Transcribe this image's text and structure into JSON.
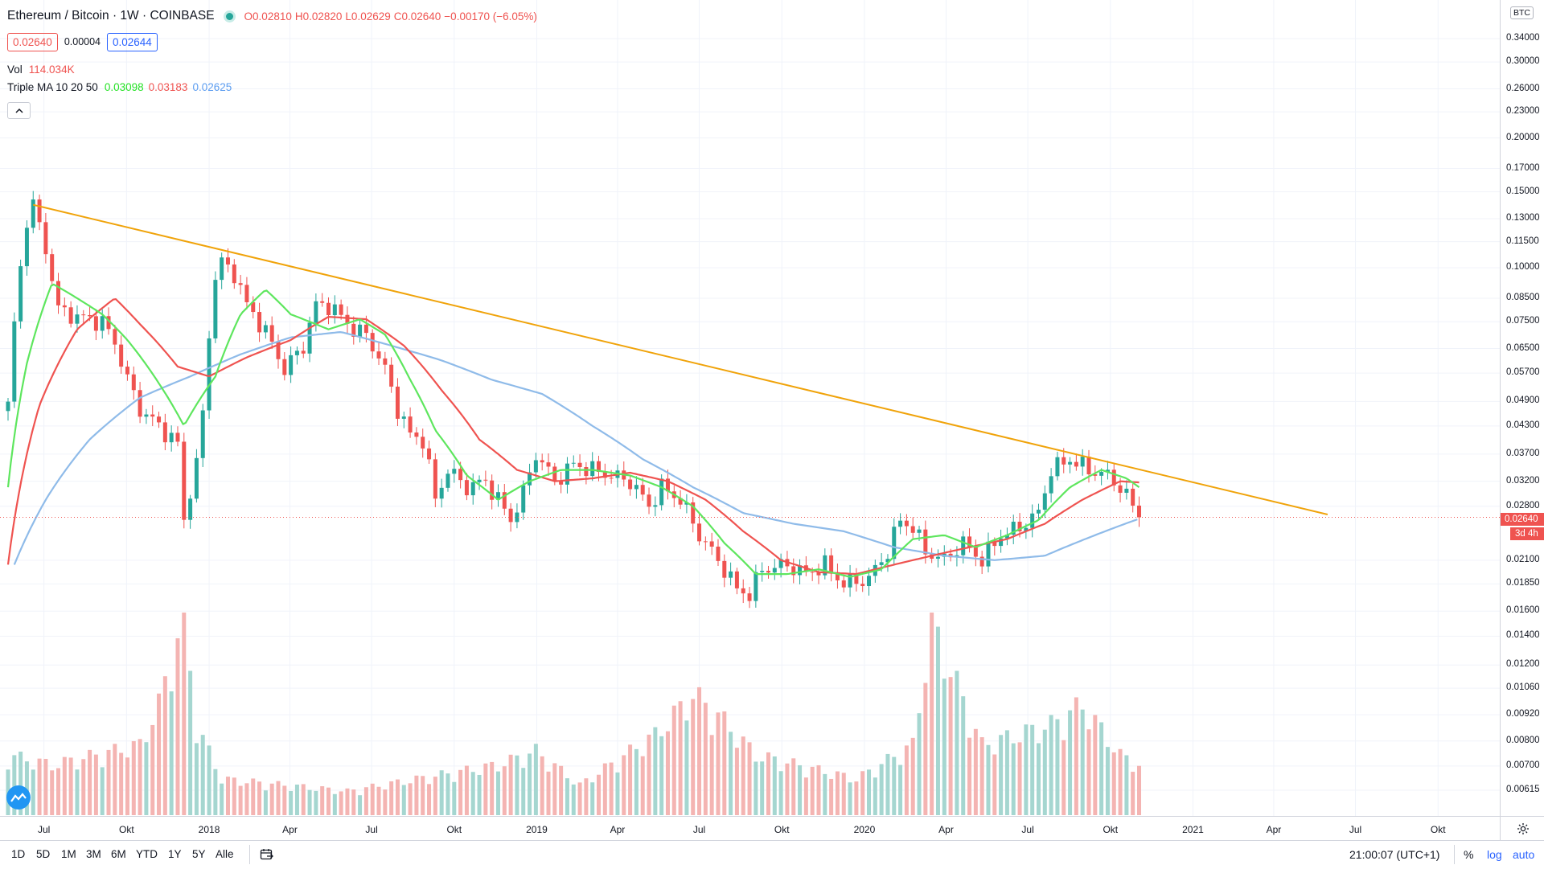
{
  "symbol": {
    "title": "Ethereum / Bitcoin · 1W · COINBASE",
    "ohlc": {
      "open": "O0.02810",
      "high": "H0.02820",
      "low": "L0.02629",
      "close": "C0.02640",
      "change": "−0.00170 (−6.05%)"
    },
    "bid": "0.02640",
    "spread": "0.00004",
    "ask": "0.02644"
  },
  "indicators": {
    "volume": {
      "label": "Vol",
      "value": "114.034K"
    },
    "triple_ma": {
      "label": "Triple MA 10 20 50",
      "ma10": "0.03098",
      "ma20": "0.03183",
      "ma50": "0.02625",
      "colors": {
        "ma10": "#5ee65e",
        "ma20": "#ef5350",
        "ma50": "#8fbbe9"
      }
    }
  },
  "price_scale": {
    "unit": "BTC",
    "labels": [
      "0.34000",
      "0.30000",
      "0.26000",
      "0.23000",
      "0.20000",
      "0.17000",
      "0.15000",
      "0.13000",
      "0.11500",
      "0.10000",
      "0.08500",
      "0.07500",
      "0.06500",
      "0.05700",
      "0.04900",
      "0.04300",
      "0.03700",
      "0.03200",
      "0.02800",
      "0.02100",
      "0.01850",
      "0.01600",
      "0.01400",
      "0.01200",
      "0.01060",
      "0.00920",
      "0.00800",
      "0.00700",
      "0.00615"
    ],
    "current_price": "0.02640",
    "countdown": "3d 4h"
  },
  "time_axis": [
    "Jul",
    "Okt",
    "2018",
    "Apr",
    "Jul",
    "Okt",
    "2019",
    "Apr",
    "Jul",
    "Okt",
    "2020",
    "Apr",
    "Jul",
    "Okt",
    "2021",
    "Apr",
    "Jul",
    "Okt"
  ],
  "bottom_bar": {
    "ranges": [
      "1D",
      "5D",
      "1M",
      "3M",
      "6M",
      "YTD",
      "1Y",
      "5Y",
      "Alle"
    ],
    "clock": "21:00:07 (UTC+1)",
    "percent": "%",
    "log": "log",
    "auto": "auto"
  },
  "chart_data": {
    "type": "candlestick",
    "interval": "1W",
    "scale": "log",
    "x_range": [
      "2017-05",
      "2021-11"
    ],
    "y_range": [
      0.0058,
      0.38
    ],
    "colors": {
      "up": "#26a69a",
      "down": "#ef5350",
      "trendline": "#f0a30a"
    },
    "price_anchors": [
      {
        "t": "2017-05-22",
        "p": 0.048
      },
      {
        "t": "2017-06-05",
        "p": 0.1
      },
      {
        "t": "2017-06-12",
        "p": 0.13
      },
      {
        "t": "2017-06-19",
        "p": 0.14
      },
      {
        "t": "2017-07-03",
        "p": 0.11
      },
      {
        "t": "2017-07-17",
        "p": 0.08
      },
      {
        "t": "2017-08-07",
        "p": 0.077
      },
      {
        "t": "2017-09-04",
        "p": 0.075
      },
      {
        "t": "2017-09-18",
        "p": 0.067
      },
      {
        "t": "2017-10-02",
        "p": 0.055
      },
      {
        "t": "2017-10-16",
        "p": 0.047
      },
      {
        "t": "2017-11-06",
        "p": 0.043
      },
      {
        "t": "2017-11-27",
        "p": 0.039
      },
      {
        "t": "2017-12-04",
        "p": 0.026
      },
      {
        "t": "2017-12-18",
        "p": 0.035
      },
      {
        "t": "2017-12-25",
        "p": 0.046
      },
      {
        "t": "2018-01-08",
        "p": 0.095
      },
      {
        "t": "2018-01-15",
        "p": 0.103
      },
      {
        "t": "2018-01-29",
        "p": 0.097
      },
      {
        "t": "2018-02-12",
        "p": 0.082
      },
      {
        "t": "2018-03-05",
        "p": 0.071
      },
      {
        "t": "2018-03-26",
        "p": 0.058
      },
      {
        "t": "2018-04-16",
        "p": 0.066
      },
      {
        "t": "2018-04-30",
        "p": 0.082
      },
      {
        "t": "2018-05-14",
        "p": 0.082
      },
      {
        "t": "2018-06-11",
        "p": 0.072
      },
      {
        "t": "2018-06-25",
        "p": 0.07
      },
      {
        "t": "2018-07-16",
        "p": 0.058
      },
      {
        "t": "2018-07-30",
        "p": 0.047
      },
      {
        "t": "2018-08-13",
        "p": 0.041
      },
      {
        "t": "2018-08-27",
        "p": 0.04
      },
      {
        "t": "2018-09-10",
        "p": 0.029
      },
      {
        "t": "2018-09-24",
        "p": 0.034
      },
      {
        "t": "2018-10-15",
        "p": 0.031
      },
      {
        "t": "2018-11-05",
        "p": 0.032
      },
      {
        "t": "2018-11-19",
        "p": 0.029
      },
      {
        "t": "2018-12-03",
        "p": 0.026
      },
      {
        "t": "2018-12-17",
        "p": 0.03
      },
      {
        "t": "2018-12-31",
        "p": 0.037
      },
      {
        "t": "2019-01-21",
        "p": 0.032
      },
      {
        "t": "2019-02-11",
        "p": 0.035
      },
      {
        "t": "2019-03-04",
        "p": 0.034
      },
      {
        "t": "2019-03-25",
        "p": 0.033
      },
      {
        "t": "2019-04-15",
        "p": 0.032
      },
      {
        "t": "2019-05-06",
        "p": 0.028
      },
      {
        "t": "2019-05-20",
        "p": 0.031
      },
      {
        "t": "2019-06-10",
        "p": 0.029
      },
      {
        "t": "2019-07-01",
        "p": 0.024
      },
      {
        "t": "2019-07-22",
        "p": 0.021
      },
      {
        "t": "2019-08-12",
        "p": 0.018
      },
      {
        "t": "2019-08-26",
        "p": 0.0175
      },
      {
        "t": "2019-09-09",
        "p": 0.02
      },
      {
        "t": "2019-10-07",
        "p": 0.0205
      },
      {
        "t": "2019-10-28",
        "p": 0.0195
      },
      {
        "t": "2019-11-18",
        "p": 0.0205
      },
      {
        "t": "2019-12-09",
        "p": 0.0185
      },
      {
        "t": "2020-01-06",
        "p": 0.019
      },
      {
        "t": "2020-01-27",
        "p": 0.022
      },
      {
        "t": "2020-02-10",
        "p": 0.026
      },
      {
        "t": "2020-02-24",
        "p": 0.025
      },
      {
        "t": "2020-03-09",
        "p": 0.022
      },
      {
        "t": "2020-03-30",
        "p": 0.021
      },
      {
        "t": "2020-04-20",
        "p": 0.023
      },
      {
        "t": "2020-05-11",
        "p": 0.021
      },
      {
        "t": "2020-06-01",
        "p": 0.024
      },
      {
        "t": "2020-06-22",
        "p": 0.025
      },
      {
        "t": "2020-07-13",
        "p": 0.027
      },
      {
        "t": "2020-07-27",
        "p": 0.034
      },
      {
        "t": "2020-08-17",
        "p": 0.036
      },
      {
        "t": "2020-09-07",
        "p": 0.034
      },
      {
        "t": "2020-09-28",
        "p": 0.033
      },
      {
        "t": "2020-10-12",
        "p": 0.031
      },
      {
        "t": "2020-10-26",
        "p": 0.0281
      },
      {
        "t": "2020-11-02",
        "p": 0.0264
      }
    ],
    "ma10_anchors": [
      {
        "t": "2017-05-22",
        "p": 0.031
      },
      {
        "t": "2017-06-12",
        "p": 0.06
      },
      {
        "t": "2017-07-10",
        "p": 0.092
      },
      {
        "t": "2017-08-07",
        "p": 0.085
      },
      {
        "t": "2017-09-04",
        "p": 0.078
      },
      {
        "t": "2017-10-02",
        "p": 0.068
      },
      {
        "t": "2017-11-06",
        "p": 0.054
      },
      {
        "t": "2017-12-04",
        "p": 0.043
      },
      {
        "t": "2018-01-08",
        "p": 0.056
      },
      {
        "t": "2018-02-05",
        "p": 0.078
      },
      {
        "t": "2018-03-05",
        "p": 0.089
      },
      {
        "t": "2018-04-02",
        "p": 0.078
      },
      {
        "t": "2018-05-14",
        "p": 0.072
      },
      {
        "t": "2018-06-18",
        "p": 0.076
      },
      {
        "t": "2018-07-16",
        "p": 0.07
      },
      {
        "t": "2018-08-13",
        "p": 0.055
      },
      {
        "t": "2018-09-10",
        "p": 0.042
      },
      {
        "t": "2018-10-15",
        "p": 0.033
      },
      {
        "t": "2018-11-19",
        "p": 0.029
      },
      {
        "t": "2018-12-24",
        "p": 0.032
      },
      {
        "t": "2019-01-28",
        "p": 0.034
      },
      {
        "t": "2019-03-04",
        "p": 0.034
      },
      {
        "t": "2019-04-15",
        "p": 0.033
      },
      {
        "t": "2019-05-20",
        "p": 0.031
      },
      {
        "t": "2019-06-24",
        "p": 0.028
      },
      {
        "t": "2019-07-29",
        "p": 0.023
      },
      {
        "t": "2019-09-02",
        "p": 0.0195
      },
      {
        "t": "2019-10-07",
        "p": 0.0195
      },
      {
        "t": "2019-11-11",
        "p": 0.02
      },
      {
        "t": "2019-12-16",
        "p": 0.0192
      },
      {
        "t": "2020-01-20",
        "p": 0.02
      },
      {
        "t": "2020-02-24",
        "p": 0.0235
      },
      {
        "t": "2020-03-30",
        "p": 0.024
      },
      {
        "t": "2020-05-04",
        "p": 0.0225
      },
      {
        "t": "2020-06-08",
        "p": 0.024
      },
      {
        "t": "2020-07-13",
        "p": 0.026
      },
      {
        "t": "2020-08-17",
        "p": 0.031
      },
      {
        "t": "2020-09-21",
        "p": 0.034
      },
      {
        "t": "2020-10-19",
        "p": 0.0325
      },
      {
        "t": "2020-11-02",
        "p": 0.031
      }
    ],
    "ma20_anchors": [
      {
        "t": "2017-05-22",
        "p": 0.0205
      },
      {
        "t": "2017-06-26",
        "p": 0.048
      },
      {
        "t": "2017-08-07",
        "p": 0.072
      },
      {
        "t": "2017-09-18",
        "p": 0.085
      },
      {
        "t": "2017-10-16",
        "p": 0.074
      },
      {
        "t": "2017-11-27",
        "p": 0.059
      },
      {
        "t": "2018-01-01",
        "p": 0.056
      },
      {
        "t": "2018-02-12",
        "p": 0.062
      },
      {
        "t": "2018-04-02",
        "p": 0.068
      },
      {
        "t": "2018-05-14",
        "p": 0.077
      },
      {
        "t": "2018-06-25",
        "p": 0.076
      },
      {
        "t": "2018-08-06",
        "p": 0.066
      },
      {
        "t": "2018-09-17",
        "p": 0.052
      },
      {
        "t": "2018-10-29",
        "p": 0.04
      },
      {
        "t": "2018-12-10",
        "p": 0.034
      },
      {
        "t": "2019-01-21",
        "p": 0.032
      },
      {
        "t": "2019-03-04",
        "p": 0.0325
      },
      {
        "t": "2019-04-15",
        "p": 0.0335
      },
      {
        "t": "2019-05-27",
        "p": 0.032
      },
      {
        "t": "2019-07-08",
        "p": 0.029
      },
      {
        "t": "2019-08-19",
        "p": 0.0245
      },
      {
        "t": "2019-09-30",
        "p": 0.021
      },
      {
        "t": "2019-11-11",
        "p": 0.0197
      },
      {
        "t": "2019-12-23",
        "p": 0.0195
      },
      {
        "t": "2020-02-03",
        "p": 0.0205
      },
      {
        "t": "2020-03-16",
        "p": 0.0215
      },
      {
        "t": "2020-04-27",
        "p": 0.0225
      },
      {
        "t": "2020-06-08",
        "p": 0.0235
      },
      {
        "t": "2020-07-20",
        "p": 0.0255
      },
      {
        "t": "2020-08-31",
        "p": 0.029
      },
      {
        "t": "2020-10-12",
        "p": 0.032
      },
      {
        "t": "2020-11-02",
        "p": 0.0318
      }
    ],
    "ma50_anchors": [
      {
        "t": "2017-05-29",
        "p": 0.0205
      },
      {
        "t": "2017-07-03",
        "p": 0.029
      },
      {
        "t": "2017-08-21",
        "p": 0.04
      },
      {
        "t": "2017-10-16",
        "p": 0.05
      },
      {
        "t": "2017-12-11",
        "p": 0.056
      },
      {
        "t": "2018-02-05",
        "p": 0.063
      },
      {
        "t": "2018-04-02",
        "p": 0.069
      },
      {
        "t": "2018-05-28",
        "p": 0.071
      },
      {
        "t": "2018-07-23",
        "p": 0.066
      },
      {
        "t": "2018-09-17",
        "p": 0.061
      },
      {
        "t": "2018-11-12",
        "p": 0.055
      },
      {
        "t": "2019-01-07",
        "p": 0.051
      },
      {
        "t": "2019-03-04",
        "p": 0.043
      },
      {
        "t": "2019-04-29",
        "p": 0.036
      },
      {
        "t": "2019-06-24",
        "p": 0.031
      },
      {
        "t": "2019-08-19",
        "p": 0.027
      },
      {
        "t": "2019-10-14",
        "p": 0.0255
      },
      {
        "t": "2019-12-09",
        "p": 0.0245
      },
      {
        "t": "2020-02-03",
        "p": 0.0225
      },
      {
        "t": "2020-03-30",
        "p": 0.0215
      },
      {
        "t": "2020-05-25",
        "p": 0.021
      },
      {
        "t": "2020-07-20",
        "p": 0.0215
      },
      {
        "t": "2020-09-14",
        "p": 0.024
      },
      {
        "t": "2020-11-02",
        "p": 0.0262
      }
    ],
    "volume_anchors": [
      {
        "t": "2017-05-22",
        "v": 0.3
      },
      {
        "t": "2017-07-10",
        "v": 0.25
      },
      {
        "t": "2017-10-16",
        "v": 0.35
      },
      {
        "t": "2017-11-06",
        "v": 0.55
      },
      {
        "t": "2017-12-04",
        "v": 1.0
      },
      {
        "t": "2017-12-18",
        "v": 0.45
      },
      {
        "t": "2018-01-15",
        "v": 0.18
      },
      {
        "t": "2018-06-04",
        "v": 0.12
      },
      {
        "t": "2018-11-19",
        "v": 0.25
      },
      {
        "t": "2018-12-31",
        "v": 0.32
      },
      {
        "t": "2019-02-18",
        "v": 0.15
      },
      {
        "t": "2019-05-13",
        "v": 0.4
      },
      {
        "t": "2019-06-24",
        "v": 0.6
      },
      {
        "t": "2019-07-22",
        "v": 0.5
      },
      {
        "t": "2019-09-02",
        "v": 0.3
      },
      {
        "t": "2019-12-23",
        "v": 0.18
      },
      {
        "t": "2020-02-24",
        "v": 0.35
      },
      {
        "t": "2020-03-16",
        "v": 0.95
      },
      {
        "t": "2020-05-11",
        "v": 0.35
      },
      {
        "t": "2020-07-27",
        "v": 0.45
      },
      {
        "t": "2020-08-31",
        "v": 0.55
      },
      {
        "t": "2020-10-12",
        "v": 0.3
      },
      {
        "t": "2020-11-02",
        "v": 0.25
      }
    ],
    "trendline": [
      {
        "t": "2017-06-19",
        "p": 0.14
      },
      {
        "t": "2021-05-31",
        "p": 0.0268
      }
    ]
  }
}
